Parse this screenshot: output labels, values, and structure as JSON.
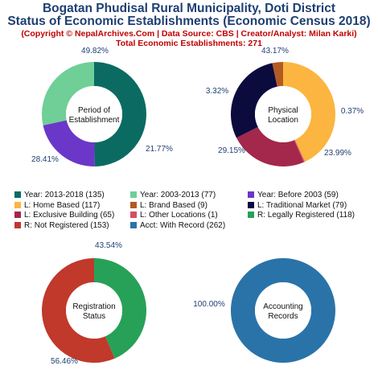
{
  "header": {
    "title_line1": "Bogatan Phudisal Rural Municipality, Doti District",
    "title_line2": "Status of Economic Establishments (Economic Census 2018)",
    "copyright": "(Copyright © NepalArchives.Com | Data Source: CBS | Creator/Analyst: Milan Karki)",
    "total": "Total Economic Establishments: 271"
  },
  "chart_data": [
    {
      "type": "pie",
      "center_label": [
        "Period of",
        "Establishment"
      ],
      "slices": [
        {
          "label": "Year: 2013-2018",
          "value": 135,
          "pct": "49.82%",
          "color": "#0b6b63"
        },
        {
          "label": "Year: Before 2003",
          "value": 59,
          "pct": "21.77%",
          "color": "#6a37c9"
        },
        {
          "label": "Year: 2003-2013",
          "value": 77,
          "pct": "28.41%",
          "color": "#6fcf97"
        }
      ]
    },
    {
      "type": "pie",
      "center_label": [
        "Physical",
        "Location"
      ],
      "slices": [
        {
          "label": "L: Home Based",
          "value": 117,
          "pct": "43.17%",
          "color": "#fbb540"
        },
        {
          "label": "L: Other Locations",
          "value": 1,
          "pct": "0.37%",
          "color": "#d84c63"
        },
        {
          "label": "L: Exclusive Building",
          "value": 65,
          "pct": "23.99%",
          "color": "#a3284b"
        },
        {
          "label": "L: Traditional Market",
          "value": 79,
          "pct": "29.15%",
          "color": "#0b0b3e"
        },
        {
          "label": "L: Brand Based",
          "value": 9,
          "pct": "3.32%",
          "color": "#b35a22"
        }
      ]
    },
    {
      "type": "pie",
      "center_label": [
        "Registration",
        "Status"
      ],
      "slices": [
        {
          "label": "R: Legally Registered",
          "value": 118,
          "pct": "43.54%",
          "color": "#27a158"
        },
        {
          "label": "R: Not Registered",
          "value": 153,
          "pct": "56.46%",
          "color": "#c0392b"
        }
      ]
    },
    {
      "type": "pie",
      "center_label": [
        "Accounting",
        "Records"
      ],
      "slices": [
        {
          "label": "Acct: With Record",
          "value": 262,
          "pct": "100.00%",
          "color": "#2a73a8"
        }
      ]
    }
  ],
  "legend": [
    {
      "text": "Year: 2013-2018 (135)",
      "color": "#0b6b63"
    },
    {
      "text": "Year: 2003-2013 (77)",
      "color": "#6fcf97"
    },
    {
      "text": "Year: Before 2003 (59)",
      "color": "#6a37c9"
    },
    {
      "text": "L: Home Based (117)",
      "color": "#fbb540"
    },
    {
      "text": "L: Brand Based (9)",
      "color": "#b35a22"
    },
    {
      "text": "L: Traditional Market (79)",
      "color": "#0b0b3e"
    },
    {
      "text": "L: Exclusive Building (65)",
      "color": "#a3284b"
    },
    {
      "text": "L: Other Locations (1)",
      "color": "#d84c63"
    },
    {
      "text": "R: Legally Registered (118)",
      "color": "#27a158"
    },
    {
      "text": "R: Not Registered (153)",
      "color": "#c0392b"
    },
    {
      "text": "Acct: With Record (262)",
      "color": "#2a73a8"
    }
  ]
}
